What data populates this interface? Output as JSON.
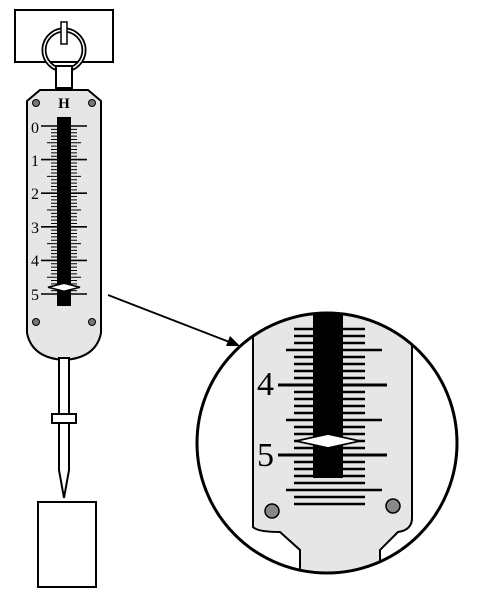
{
  "scale": {
    "top_label": "H",
    "labels": [
      "0",
      "1",
      "2",
      "3",
      "4",
      "5"
    ]
  },
  "zoom": {
    "labels": [
      "4",
      "5"
    ]
  },
  "reading": {
    "value": 4.8
  },
  "colors": {
    "ink": "#000000",
    "body_fill": "#e6e6e6",
    "paper": "#ffffff"
  }
}
